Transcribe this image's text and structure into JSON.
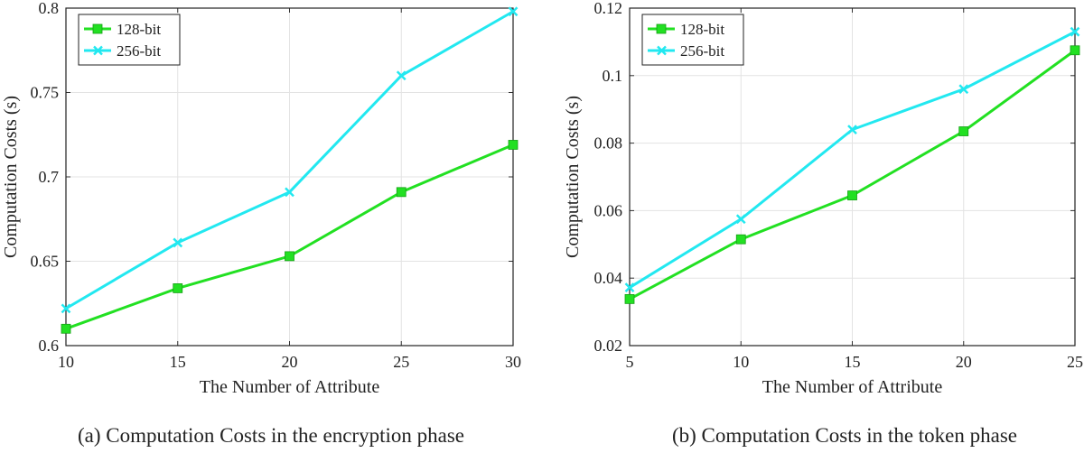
{
  "chart_data": [
    {
      "type": "line",
      "title": "",
      "caption": "(a) Computation Costs in the encryption phase",
      "xlabel": "The Number of Attribute",
      "ylabel": "Computation Costs (s)",
      "x": [
        10,
        15,
        20,
        25,
        30
      ],
      "xlim": [
        10,
        30
      ],
      "ylim": [
        0.6,
        0.8
      ],
      "xticks": [
        10,
        15,
        20,
        25,
        30
      ],
      "yticks": [
        0.6,
        0.65,
        0.7,
        0.75,
        0.8
      ],
      "xtick_labels": [
        "10",
        "15",
        "20",
        "25",
        "30"
      ],
      "ytick_labels": [
        "0.6",
        "0.65",
        "0.7",
        "0.75",
        "0.8"
      ],
      "grid": true,
      "legend_position": "top-left",
      "series": [
        {
          "name": "128-bit",
          "color": "#22e022",
          "marker": "square",
          "values": [
            0.61,
            0.634,
            0.653,
            0.691,
            0.719
          ]
        },
        {
          "name": "256-bit",
          "color": "#22e8f0",
          "marker": "x",
          "values": [
            0.622,
            0.661,
            0.691,
            0.76,
            0.798
          ]
        }
      ]
    },
    {
      "type": "line",
      "title": "",
      "caption": "(b) Computation Costs in the token phase",
      "xlabel": "The Number of Attribute",
      "ylabel": "Computation Costs (s)",
      "x": [
        5,
        10,
        15,
        20,
        25
      ],
      "xlim": [
        5,
        25
      ],
      "ylim": [
        0.02,
        0.12
      ],
      "xticks": [
        5,
        10,
        15,
        20,
        25
      ],
      "yticks": [
        0.02,
        0.04,
        0.06,
        0.08,
        0.1,
        0.12
      ],
      "xtick_labels": [
        "5",
        "10",
        "15",
        "20",
        "25"
      ],
      "ytick_labels": [
        "0.02",
        "0.04",
        "0.06",
        "0.08",
        "0.1",
        "0.12"
      ],
      "grid": true,
      "legend_position": "top-left",
      "series": [
        {
          "name": "128-bit",
          "color": "#22e022",
          "marker": "square",
          "values": [
            0.0338,
            0.0515,
            0.0645,
            0.0835,
            0.1075
          ]
        },
        {
          "name": "256-bit",
          "color": "#22e8f0",
          "marker": "x",
          "values": [
            0.0372,
            0.0575,
            0.084,
            0.096,
            0.113
          ]
        }
      ]
    }
  ]
}
